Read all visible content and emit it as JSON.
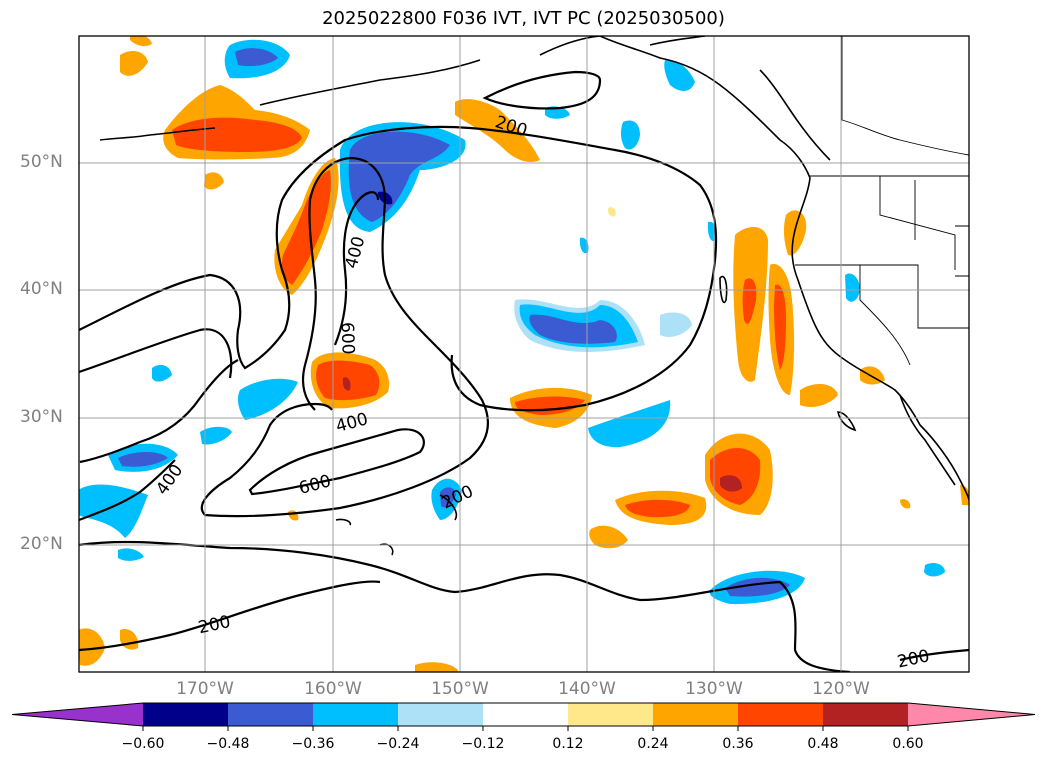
{
  "title": "2025022800 F036 IVT, IVT PC (2025030500)",
  "map": {
    "lat_labels": [
      "50°N",
      "40°N",
      "30°N",
      "20°N"
    ],
    "lon_labels": [
      "170°W",
      "160°W",
      "150°W",
      "140°W",
      "130°W",
      "120°W"
    ],
    "contour_labels": [
      "200",
      "400",
      "600",
      "600",
      "400",
      "400",
      "200",
      "200",
      "200"
    ]
  },
  "colorbar": {
    "ticks": [
      "−0.60",
      "−0.48",
      "−0.36",
      "−0.24",
      "−0.12",
      "0.12",
      "0.24",
      "0.36",
      "0.48",
      "0.60"
    ],
    "colors": [
      "#9932CC",
      "#00008B",
      "#3A5BD1",
      "#00BFFF",
      "#ADE1F8",
      "#FFFFFF",
      "#FFE88A",
      "#FFA500",
      "#FF4500",
      "#B22222",
      "#FF88AA"
    ]
  }
}
